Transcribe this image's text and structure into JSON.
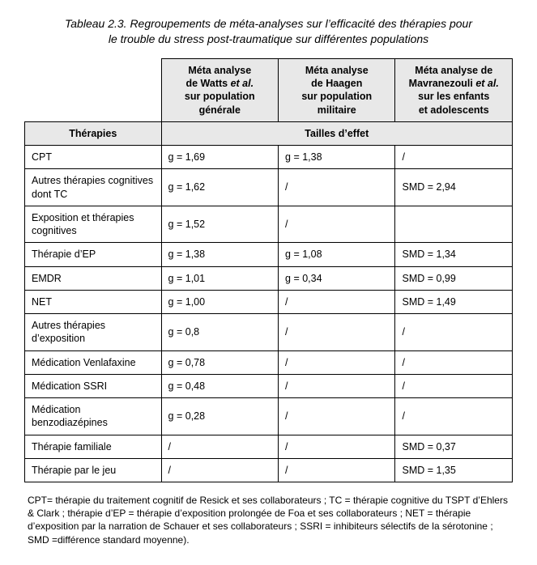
{
  "caption_line1": "Tableau 2.3. Regroupements de méta-analyses sur l’efficacité des thérapies pour",
  "caption_line2": "le trouble du stress post-traumatique sur différentes populations",
  "header": {
    "col1_line1": "Méta analyse",
    "col1_line2_prefix": "de Watts ",
    "col1_line2_italic": "et al.",
    "col1_line3": "sur population",
    "col1_line4": "générale",
    "col2_line1": "Méta analyse",
    "col2_line2": "de Haagen",
    "col2_line3": "sur population",
    "col2_line4": "militaire",
    "col3_line1": "Méta analyse de",
    "col3_line2_prefix": "Mavranezouli ",
    "col3_line2_italic": "et al.",
    "col3_line3": "sur les enfants",
    "col3_line4": "et adolescents",
    "therapies_label": "Thérapies",
    "effect_label": "Tailles d’effet"
  },
  "rows": [
    {
      "t": "CPT",
      "c1": "g = 1,69",
      "c2": "g = 1,38",
      "c3": "/"
    },
    {
      "t": "Autres thérapies cognitives dont TC",
      "c1": "g = 1,62",
      "c2": "/",
      "c3": "SMD = 2,94"
    },
    {
      "t": "Exposition et thérapies cognitives",
      "c1": "g = 1,52",
      "c2": "/",
      "c3": ""
    },
    {
      "t": "Thérapie d’EP",
      "c1": "g = 1,38",
      "c2": "g = 1,08",
      "c3": "SMD = 1,34"
    },
    {
      "t": "EMDR",
      "c1": "g = 1,01",
      "c2": "g = 0,34",
      "c3": "SMD = 0,99"
    },
    {
      "t": "NET",
      "c1": "g = 1,00",
      "c2": "/",
      "c3": "SMD = 1,49"
    },
    {
      "t": "Autres thérapies d’exposition",
      "c1": "g = 0,8",
      "c2": "/",
      "c3": "/"
    },
    {
      "t": "Médication Venlafaxine",
      "c1": "g = 0,78",
      "c2": "/",
      "c3": "/"
    },
    {
      "t": "Médication SSRI",
      "c1": "g = 0,48",
      "c2": "/",
      "c3": "/"
    },
    {
      "t": "Médication benzodiazépines",
      "c1": "g = 0,28",
      "c2": "/",
      "c3": "/"
    },
    {
      "t": "Thérapie familiale",
      "c1": "/",
      "c2": "/",
      "c3": "SMD = 0,37"
    },
    {
      "t": "Thérapie par le jeu",
      "c1": "/",
      "c2": "/",
      "c3": "SMD = 1,35"
    }
  ],
  "footnote": "CPT= thérapie du traitement cognitif de Resick et ses collaborateurs ; TC = thérapie cognitive du TSPT d’Ehlers & Clark ; thérapie d’EP = thérapie d’exposition prolongée de Foa et ses collaborateurs ; NET = thérapie d’exposition par la narration de Schauer et ses collaborateurs ; SSRI = inhibiteurs sélectifs de la sérotonine ; SMD =différence standard moyenne)."
}
